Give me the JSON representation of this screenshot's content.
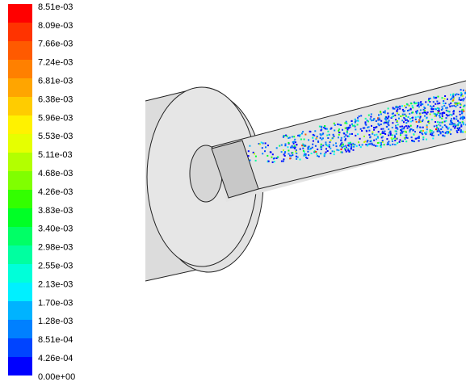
{
  "colorbar": {
    "labels": [
      "8.51e-03",
      "8.09e-03",
      "7.66e-03",
      "7.24e-03",
      "6.81e-03",
      "6.38e-03",
      "5.96e-03",
      "5.53e-03",
      "5.11e-03",
      "4.68e-03",
      "4.26e-03",
      "3.83e-03",
      "3.40e-03",
      "2.98e-03",
      "2.55e-03",
      "2.13e-03",
      "1.70e-03",
      "1.28e-03",
      "8.51e-04",
      "4.26e-04",
      "0.00e+00"
    ],
    "colors": [
      "#ff0000",
      "#ff3300",
      "#ff5a00",
      "#ff8000",
      "#ffa500",
      "#ffcc00",
      "#fff200",
      "#e6ff00",
      "#b3ff00",
      "#80ff00",
      "#33ff00",
      "#00ff26",
      "#00ff66",
      "#00ffa0",
      "#00ffd9",
      "#00f0ff",
      "#00b3ff",
      "#0080ff",
      "#0044ff",
      "#0000ff"
    ]
  }
}
